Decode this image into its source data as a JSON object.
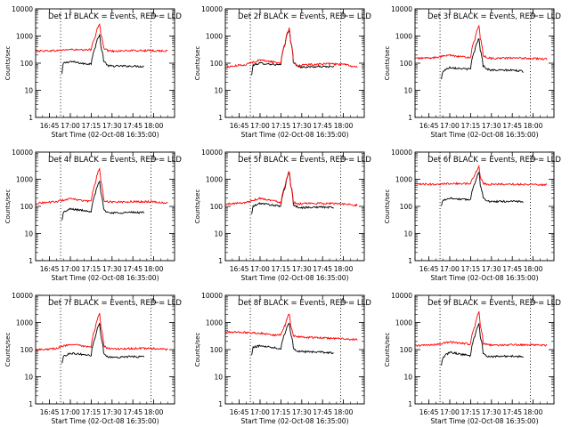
{
  "figure": {
    "ylabel": "Counts/sec",
    "xlabel": "Start Time (02-Oct-08 16:35:00)"
  },
  "chart_data": [
    {
      "type": "line",
      "title": "Det 1f BLACK = Events, RED = LLD",
      "xlabel": "Start Time (02-Oct-08 16:35:00)",
      "ylabel": "Counts/sec",
      "yscale": "log",
      "ylim": [
        1,
        10000
      ],
      "xlim": [
        "16:35",
        "18:15"
      ],
      "xticks": [
        "16:45",
        "17:00",
        "17:15",
        "17:30",
        "17:45",
        "18:00"
      ],
      "yticks": [
        "1",
        "10",
        "100",
        "1000",
        "10000"
      ],
      "vlines": [
        "16:53",
        "17:58"
      ],
      "series": [
        {
          "name": "BLACK = Events",
          "color": "#000000",
          "x": [
            "16:54",
            "16:55",
            "17:00",
            "17:10",
            "17:15",
            "17:18",
            "17:21",
            "17:22",
            "17:24",
            "17:27",
            "17:30",
            "17:45",
            "17:53"
          ],
          "y": [
            40,
            100,
            115,
            95,
            95,
            400,
            1100,
            400,
            120,
            80,
            78,
            78,
            76
          ]
        },
        {
          "name": "RED = LLD",
          "color": "#ff0000",
          "x": [
            "16:35",
            "16:50",
            "17:00",
            "17:10",
            "17:15",
            "17:18",
            "17:21",
            "17:22",
            "17:24",
            "17:27",
            "17:30",
            "17:45",
            "18:00",
            "18:10"
          ],
          "y": [
            280,
            290,
            320,
            300,
            320,
            1000,
            2800,
            1100,
            360,
            290,
            280,
            290,
            290,
            280
          ]
        }
      ]
    },
    {
      "type": "line",
      "title": "Det 2f BLACK = Events, RED = LLD",
      "xlabel": "Start Time (02-Oct-08 16:35:00)",
      "ylabel": "Counts/sec",
      "yscale": "log",
      "ylim": [
        1,
        10000
      ],
      "xlim": [
        "16:35",
        "18:15"
      ],
      "xticks": [
        "16:45",
        "17:00",
        "17:15",
        "17:30",
        "17:45",
        "18:00"
      ],
      "yticks": [
        "1",
        "10",
        "100",
        "1000",
        "10000"
      ],
      "vlines": [
        "16:53",
        "17:58"
      ],
      "series": [
        {
          "name": "BLACK = Events",
          "color": "#000000",
          "x": [
            "16:54",
            "16:55",
            "17:00",
            "17:10",
            "17:15",
            "17:18",
            "17:21",
            "17:22",
            "17:24",
            "17:27",
            "17:30",
            "17:45",
            "17:53"
          ],
          "y": [
            35,
            85,
            100,
            90,
            85,
            500,
            1800,
            600,
            110,
            75,
            72,
            75,
            74
          ]
        },
        {
          "name": "RED = LLD",
          "color": "#ff0000",
          "x": [
            "16:35",
            "16:50",
            "17:00",
            "17:10",
            "17:15",
            "17:18",
            "17:21",
            "17:22",
            "17:24",
            "17:27",
            "17:30",
            "17:45",
            "18:00",
            "18:10"
          ],
          "y": [
            70,
            90,
            130,
            110,
            100,
            500,
            1900,
            600,
            110,
            80,
            85,
            95,
            90,
            70
          ]
        }
      ]
    },
    {
      "type": "line",
      "title": "Det 3f BLACK = Events, RED = LLD",
      "xlabel": "Start Time (02-Oct-08 16:35:00)",
      "ylabel": "Counts/sec",
      "yscale": "log",
      "ylim": [
        1,
        10000
      ],
      "xlim": [
        "16:35",
        "18:15"
      ],
      "xticks": [
        "16:45",
        "17:00",
        "17:15",
        "17:30",
        "17:45",
        "18:00"
      ],
      "yticks": [
        "1",
        "10",
        "100",
        "1000",
        "10000"
      ],
      "vlines": [
        "16:53",
        "17:58"
      ],
      "series": [
        {
          "name": "BLACK = Events",
          "color": "#000000",
          "x": [
            "16:54",
            "16:55",
            "17:00",
            "17:10",
            "17:15",
            "17:18",
            "17:21",
            "17:22",
            "17:24",
            "17:27",
            "17:30",
            "17:45",
            "17:53"
          ],
          "y": [
            25,
            50,
            70,
            62,
            60,
            300,
            800,
            300,
            80,
            60,
            55,
            55,
            50
          ]
        },
        {
          "name": "RED = LLD",
          "color": "#ff0000",
          "x": [
            "16:35",
            "16:50",
            "17:00",
            "17:10",
            "17:15",
            "17:18",
            "17:21",
            "17:22",
            "17:24",
            "17:27",
            "17:30",
            "17:45",
            "18:00",
            "18:10"
          ],
          "y": [
            150,
            160,
            200,
            170,
            160,
            700,
            2300,
            800,
            190,
            160,
            150,
            155,
            150,
            140
          ]
        }
      ]
    },
    {
      "type": "line",
      "title": "Det 4f BLACK = Events, RED = LLD",
      "xlabel": "Start Time (02-Oct-08 16:35:00)",
      "ylabel": "Counts/sec",
      "yscale": "log",
      "ylim": [
        1,
        10000
      ],
      "xlim": [
        "16:35",
        "18:15"
      ],
      "xticks": [
        "16:45",
        "17:00",
        "17:15",
        "17:30",
        "17:45",
        "18:00"
      ],
      "yticks": [
        "1",
        "10",
        "100",
        "1000",
        "10000"
      ],
      "vlines": [
        "16:53",
        "17:58"
      ],
      "series": [
        {
          "name": "BLACK = Events",
          "color": "#000000",
          "x": [
            "16:54",
            "16:55",
            "17:00",
            "17:10",
            "17:15",
            "17:18",
            "17:21",
            "17:22",
            "17:24",
            "17:27",
            "17:30",
            "17:45",
            "17:53"
          ],
          "y": [
            30,
            60,
            80,
            70,
            65,
            300,
            800,
            300,
            75,
            60,
            58,
            60,
            60
          ]
        },
        {
          "name": "RED = LLD",
          "color": "#ff0000",
          "x": [
            "16:35",
            "16:50",
            "17:00",
            "17:10",
            "17:15",
            "17:18",
            "17:21",
            "17:22",
            "17:24",
            "17:27",
            "17:30",
            "17:45",
            "18:00",
            "18:10"
          ],
          "y": [
            130,
            150,
            190,
            160,
            150,
            700,
            2500,
            800,
            170,
            150,
            145,
            150,
            150,
            130
          ]
        }
      ]
    },
    {
      "type": "line",
      "title": "Det 5f BLACK = Events, RED = LLD",
      "xlabel": "Start Time (02-Oct-08 16:35:00)",
      "ylabel": "Counts/sec",
      "yscale": "log",
      "ylim": [
        1,
        10000
      ],
      "xlim": [
        "16:35",
        "18:15"
      ],
      "xticks": [
        "16:45",
        "17:00",
        "17:15",
        "17:30",
        "17:45",
        "18:00"
      ],
      "yticks": [
        "1",
        "10",
        "100",
        "1000",
        "10000"
      ],
      "vlines": [
        "16:53",
        "17:58"
      ],
      "series": [
        {
          "name": "BLACK = Events",
          "color": "#000000",
          "x": [
            "16:54",
            "16:55",
            "17:00",
            "17:10",
            "17:15",
            "17:18",
            "17:21",
            "17:22",
            "17:24",
            "17:27",
            "17:30",
            "17:45",
            "17:53"
          ],
          "y": [
            50,
            100,
            130,
            110,
            100,
            500,
            1800,
            600,
            110,
            95,
            90,
            95,
            90
          ]
        },
        {
          "name": "RED = LLD",
          "color": "#ff0000",
          "x": [
            "16:35",
            "16:50",
            "17:00",
            "17:10",
            "17:15",
            "17:18",
            "17:21",
            "17:22",
            "17:24",
            "17:27",
            "17:30",
            "17:45",
            "18:00",
            "18:10"
          ],
          "y": [
            120,
            140,
            200,
            160,
            140,
            550,
            2000,
            650,
            140,
            125,
            125,
            130,
            125,
            110
          ]
        }
      ]
    },
    {
      "type": "line",
      "title": "Det 6f BLACK = Events, RED = LLD",
      "xlabel": "Start Time (02-Oct-08 16:35:00)",
      "ylabel": "Counts/sec",
      "yscale": "log",
      "ylim": [
        1,
        10000
      ],
      "xlim": [
        "16:35",
        "18:15"
      ],
      "xticks": [
        "16:45",
        "17:00",
        "17:15",
        "17:30",
        "17:45",
        "18:00"
      ],
      "yticks": [
        "1",
        "10",
        "100",
        "1000",
        "10000"
      ],
      "vlines": [
        "16:53",
        "17:58"
      ],
      "series": [
        {
          "name": "BLACK = Events",
          "color": "#000000",
          "x": [
            "16:54",
            "16:55",
            "17:00",
            "17:10",
            "17:15",
            "17:18",
            "17:21",
            "17:22",
            "17:24",
            "17:27",
            "17:30",
            "17:45",
            "17:53"
          ],
          "y": [
            100,
            170,
            200,
            180,
            180,
            700,
            1800,
            600,
            200,
            160,
            150,
            155,
            150
          ]
        },
        {
          "name": "RED = LLD",
          "color": "#ff0000",
          "x": [
            "16:35",
            "16:50",
            "17:00",
            "17:10",
            "17:15",
            "17:18",
            "17:21",
            "17:22",
            "17:24",
            "17:27",
            "17:30",
            "17:45",
            "18:00",
            "18:10"
          ],
          "y": [
            650,
            660,
            700,
            690,
            700,
            1400,
            2900,
            1200,
            700,
            660,
            650,
            660,
            650,
            620
          ]
        }
      ]
    },
    {
      "type": "line",
      "title": "Det 7f BLACK = Events, RED = LLD",
      "xlabel": "Start Time (02-Oct-08 16:35:00)",
      "ylabel": "Counts/sec",
      "yscale": "log",
      "ylim": [
        1,
        10000
      ],
      "xlim": [
        "16:35",
        "18:15"
      ],
      "xticks": [
        "16:45",
        "17:00",
        "17:15",
        "17:30",
        "17:45",
        "18:00"
      ],
      "yticks": [
        "1",
        "10",
        "100",
        "1000",
        "10000"
      ],
      "vlines": [
        "16:53",
        "17:58"
      ],
      "series": [
        {
          "name": "BLACK = Events",
          "color": "#000000",
          "x": [
            "16:54",
            "16:55",
            "17:00",
            "17:10",
            "17:15",
            "17:18",
            "17:21",
            "17:22",
            "17:24",
            "17:27",
            "17:30",
            "17:45",
            "17:53"
          ],
          "y": [
            30,
            55,
            75,
            65,
            60,
            300,
            900,
            300,
            70,
            55,
            52,
            55,
            55
          ]
        },
        {
          "name": "RED = LLD",
          "color": "#ff0000",
          "x": [
            "16:35",
            "16:50",
            "17:00",
            "17:10",
            "17:15",
            "17:18",
            "17:21",
            "17:22",
            "17:24",
            "17:27",
            "17:30",
            "17:45",
            "18:00",
            "18:10"
          ],
          "y": [
            100,
            110,
            160,
            130,
            120,
            600,
            2200,
            700,
            140,
            110,
            105,
            110,
            110,
            100
          ]
        }
      ]
    },
    {
      "type": "line",
      "title": "Det 8f BLACK = Events, RED = LLD",
      "xlabel": "Start Time (02-Oct-08 16:35:00)",
      "ylabel": "Counts/sec",
      "yscale": "log",
      "ylim": [
        1,
        10000
      ],
      "xlim": [
        "16:35",
        "18:15"
      ],
      "xticks": [
        "16:45",
        "17:00",
        "17:15",
        "17:30",
        "17:45",
        "18:00"
      ],
      "yticks": [
        "1",
        "10",
        "100",
        "1000",
        "10000"
      ],
      "vlines": [
        "16:53",
        "17:58"
      ],
      "series": [
        {
          "name": "BLACK = Events",
          "color": "#000000",
          "x": [
            "16:54",
            "16:55",
            "17:00",
            "17:10",
            "17:15",
            "17:18",
            "17:21",
            "17:22",
            "17:24",
            "17:27",
            "17:30",
            "17:45",
            "17:53"
          ],
          "y": [
            60,
            120,
            140,
            120,
            110,
            400,
            1000,
            400,
            110,
            90,
            85,
            80,
            75
          ]
        },
        {
          "name": "RED = LLD",
          "color": "#ff0000",
          "x": [
            "16:35",
            "16:50",
            "17:00",
            "17:10",
            "17:15",
            "17:18",
            "17:21",
            "17:22",
            "17:24",
            "17:27",
            "17:30",
            "17:45",
            "18:00",
            "18:10"
          ],
          "y": [
            450,
            430,
            400,
            350,
            340,
            800,
            2100,
            800,
            330,
            300,
            290,
            270,
            250,
            230
          ]
        }
      ]
    },
    {
      "type": "line",
      "title": "Det 9f BLACK = Events, RED = LLD",
      "xlabel": "Start Time (02-Oct-08 16:35:00)",
      "ylabel": "Counts/sec",
      "yscale": "log",
      "ylim": [
        1,
        10000
      ],
      "xlim": [
        "16:35",
        "18:15"
      ],
      "xticks": [
        "16:45",
        "17:00",
        "17:15",
        "17:30",
        "17:45",
        "18:00"
      ],
      "yticks": [
        "1",
        "10",
        "100",
        "1000",
        "10000"
      ],
      "vlines": [
        "16:53",
        "17:58"
      ],
      "series": [
        {
          "name": "BLACK = Events",
          "color": "#000000",
          "x": [
            "16:54",
            "16:55",
            "17:00",
            "17:10",
            "17:15",
            "17:18",
            "17:21",
            "17:22",
            "17:24",
            "17:27",
            "17:30",
            "17:45",
            "17:53"
          ],
          "y": [
            25,
            50,
            80,
            65,
            60,
            300,
            900,
            300,
            70,
            58,
            55,
            58,
            55
          ]
        },
        {
          "name": "RED = LLD",
          "color": "#ff0000",
          "x": [
            "16:35",
            "16:50",
            "17:00",
            "17:10",
            "17:15",
            "17:18",
            "17:21",
            "17:22",
            "17:24",
            "17:27",
            "17:30",
            "17:45",
            "18:00",
            "18:10"
          ],
          "y": [
            140,
            150,
            190,
            170,
            160,
            700,
            2400,
            800,
            170,
            150,
            145,
            150,
            150,
            140
          ]
        }
      ]
    }
  ]
}
